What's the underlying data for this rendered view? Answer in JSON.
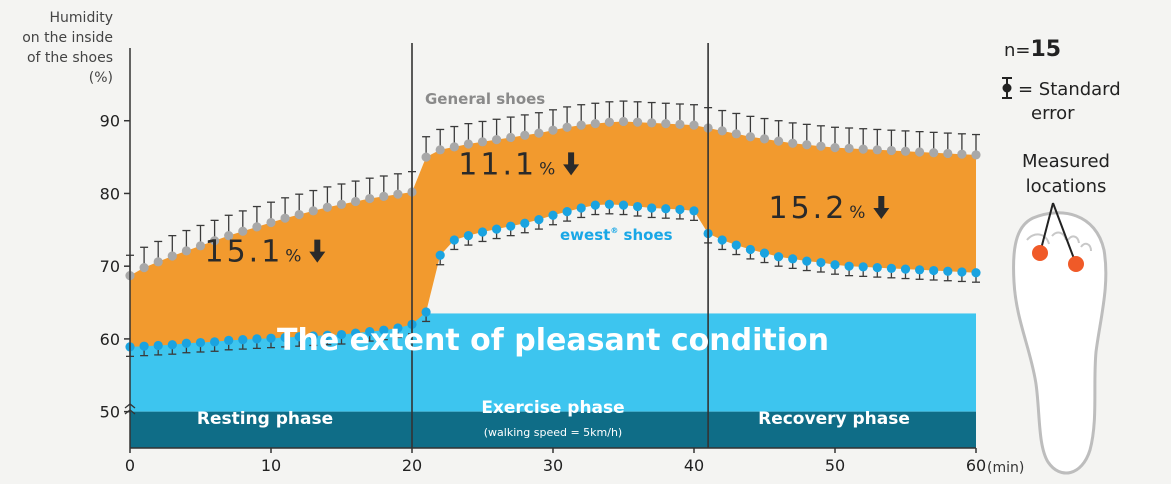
{
  "chart_data": {
    "type": "line",
    "ylabel_lines": [
      "Humidity",
      "on the inside",
      "of the shoes",
      "(%)"
    ],
    "xlabel": "(min)",
    "x_ticks": [
      0,
      10,
      20,
      30,
      40,
      50,
      60
    ],
    "y_ticks": [
      50,
      60,
      70,
      80,
      90
    ],
    "xlim": [
      0,
      60
    ],
    "ylim": [
      45,
      100
    ],
    "series": [
      {
        "name": "General shoes",
        "color": "#a8a8a8",
        "x": [
          0,
          1,
          2,
          3,
          4,
          5,
          6,
          7,
          8,
          9,
          10,
          11,
          12,
          13,
          14,
          15,
          16,
          17,
          18,
          19,
          20,
          21,
          22,
          23,
          24,
          25,
          26,
          27,
          28,
          29,
          30,
          31,
          32,
          33,
          34,
          35,
          36,
          37,
          38,
          39,
          40,
          41,
          42,
          43,
          44,
          45,
          46,
          47,
          48,
          49,
          50,
          51,
          52,
          53,
          54,
          55,
          56,
          57,
          58,
          59,
          60
        ],
        "values": [
          68.7,
          69.8,
          70.6,
          71.4,
          72.1,
          72.8,
          73.5,
          74.2,
          74.8,
          75.4,
          76.0,
          76.6,
          77.1,
          77.6,
          78.1,
          78.5,
          78.9,
          79.3,
          79.6,
          79.9,
          80.2,
          85.0,
          86.0,
          86.4,
          86.8,
          87.1,
          87.4,
          87.7,
          88.0,
          88.3,
          88.7,
          89.1,
          89.4,
          89.6,
          89.8,
          89.9,
          89.8,
          89.7,
          89.6,
          89.5,
          89.4,
          89.0,
          88.6,
          88.2,
          87.8,
          87.5,
          87.2,
          86.9,
          86.7,
          86.5,
          86.3,
          86.2,
          86.1,
          86.0,
          85.9,
          85.8,
          85.7,
          85.6,
          85.5,
          85.4,
          85.3
        ],
        "error": 2.8
      },
      {
        "name": "ewest® shoes",
        "color": "#1aa3e0",
        "x": [
          0,
          1,
          2,
          3,
          4,
          5,
          6,
          7,
          8,
          9,
          10,
          11,
          12,
          13,
          14,
          15,
          16,
          17,
          18,
          19,
          20,
          21,
          22,
          23,
          24,
          25,
          26,
          27,
          28,
          29,
          30,
          31,
          32,
          33,
          34,
          35,
          36,
          37,
          38,
          39,
          40,
          41,
          42,
          43,
          44,
          45,
          46,
          47,
          48,
          49,
          50,
          51,
          52,
          53,
          54,
          55,
          56,
          57,
          58,
          59,
          60
        ],
        "values": [
          58.9,
          59.0,
          59.1,
          59.2,
          59.4,
          59.5,
          59.6,
          59.8,
          59.9,
          60.0,
          60.1,
          60.2,
          60.3,
          60.4,
          60.5,
          60.6,
          60.8,
          61.0,
          61.2,
          61.5,
          62.0,
          63.7,
          71.5,
          73.6,
          74.2,
          74.7,
          75.1,
          75.5,
          75.9,
          76.4,
          77.0,
          77.5,
          78.0,
          78.4,
          78.5,
          78.4,
          78.2,
          78.0,
          77.9,
          77.8,
          77.6,
          74.5,
          73.6,
          72.9,
          72.3,
          71.8,
          71.3,
          71.0,
          70.7,
          70.5,
          70.2,
          70.0,
          69.9,
          69.8,
          69.7,
          69.6,
          69.5,
          69.4,
          69.3,
          69.2,
          69.1
        ],
        "error": 1.3
      }
    ],
    "bands": [
      {
        "label": "The extent of pleasant condition",
        "y_from": 50,
        "y_to": 63.5,
        "color": "#3dc5ef"
      },
      {
        "label": "",
        "y_from": 45,
        "y_to": 50,
        "color": "#0f6d87"
      }
    ],
    "phases": [
      {
        "label": "Resting phase",
        "sub": "",
        "x_from": 0,
        "x_to": 20
      },
      {
        "label": "Exercise phase",
        "sub": "(walking speed = 5km/h)",
        "x_from": 20,
        "x_to": 41
      },
      {
        "label": "Recovery phase",
        "sub": "",
        "x_from": 41,
        "x_to": 60
      }
    ],
    "phase_dividers": [
      20,
      41
    ],
    "annotations": [
      {
        "value": "15.1",
        "unit": "%",
        "x": 13,
        "y": 72
      },
      {
        "value": "11.1",
        "unit": "%",
        "x": 31,
        "y": 84
      },
      {
        "value": "15.2",
        "unit": "%",
        "x": 53,
        "y": 78
      }
    ],
    "series_label_general": "General shoes",
    "series_label_ewest": "ewest",
    "series_label_ewest_sup": "®",
    "series_label_ewest_tail": " shoes",
    "fill_color": "#f29a2e"
  },
  "legend": {
    "n_prefix": "n=",
    "n_value": "15",
    "se_line1": "= Standard",
    "se_line2": "error",
    "measured_line1": "Measured",
    "measured_line2": "locations"
  }
}
